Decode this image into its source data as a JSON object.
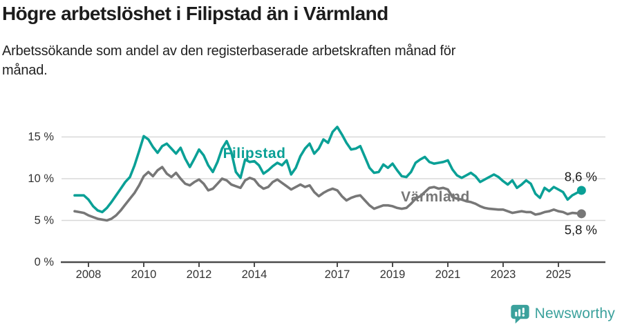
{
  "header": {
    "title": "Högre arbetslöshet i Filipstad än i Värmland",
    "subtitle_lines": [
      "Arbetssökande som andel av den registerbaserade arbetskraften månad för",
      "månad."
    ]
  },
  "chart_data": {
    "type": "line",
    "title": "Högre arbetslöshet i Filipstad än i Värmland",
    "subtitle": "Arbetssökande som andel av den registerbaserade arbetskraften månad för månad.",
    "unit": "%",
    "grid": true,
    "x_start": 2007.5,
    "x_step_years": 0.16667,
    "x_ticks": [
      2008,
      2010,
      2012,
      2014,
      2017,
      2019,
      2021,
      2023,
      2025
    ],
    "y_ticks": [
      0,
      5,
      10,
      15
    ],
    "y_tick_suffix": " %",
    "ylim": [
      0,
      16.5
    ],
    "xlabel": "",
    "ylabel": "",
    "legend_position": "inline-labels",
    "series": [
      {
        "name": "Filipstad",
        "color": "#0aa096",
        "end_label": "8,6 %",
        "last_value": 8.6,
        "label_anchor": {
          "year": 2014.0,
          "pct": 13.0
        },
        "values": [
          8.0,
          8.0,
          8.0,
          7.5,
          6.7,
          6.2,
          6.0,
          6.5,
          7.2,
          8.0,
          8.8,
          9.6,
          10.2,
          11.6,
          13.3,
          15.1,
          14.7,
          13.8,
          13.1,
          13.9,
          14.2,
          13.6,
          13.0,
          13.7,
          12.4,
          11.4,
          12.4,
          13.5,
          12.8,
          11.6,
          10.8,
          12.0,
          13.6,
          14.5,
          13.2,
          10.8,
          10.1,
          12.3,
          12.0,
          12.1,
          11.6,
          10.6,
          11.0,
          11.5,
          11.9,
          11.6,
          12.2,
          10.5,
          11.3,
          12.7,
          13.6,
          14.2,
          13.0,
          13.6,
          14.7,
          14.3,
          15.6,
          16.2,
          15.3,
          14.3,
          13.5,
          13.6,
          13.9,
          12.6,
          11.3,
          10.7,
          10.8,
          11.7,
          11.3,
          11.8,
          11.0,
          10.3,
          10.2,
          10.8,
          11.9,
          12.3,
          12.6,
          12.0,
          11.8,
          11.9,
          12.0,
          12.2,
          11.1,
          10.4,
          10.1,
          10.4,
          10.7,
          10.3,
          9.6,
          9.9,
          10.2,
          10.5,
          10.2,
          9.7,
          9.3,
          9.8,
          8.9,
          9.3,
          9.8,
          9.4,
          8.2,
          7.7,
          8.9,
          8.5,
          9.0,
          8.7,
          8.4,
          7.5,
          8.0,
          8.3,
          8.6
        ]
      },
      {
        "name": "Värmland",
        "color": "#777777",
        "end_label": "5,8 %",
        "last_value": 5.8,
        "label_anchor": {
          "year": 2020.55,
          "pct": 7.8
        },
        "values": [
          6.1,
          6.0,
          5.9,
          5.6,
          5.4,
          5.2,
          5.1,
          5.0,
          5.2,
          5.6,
          6.2,
          6.9,
          7.6,
          8.3,
          9.2,
          10.3,
          10.8,
          10.3,
          11.0,
          11.4,
          10.6,
          10.2,
          10.7,
          10.0,
          9.4,
          9.2,
          9.6,
          9.9,
          9.4,
          8.6,
          8.8,
          9.4,
          10.0,
          9.8,
          9.3,
          9.1,
          8.9,
          9.8,
          10.1,
          9.9,
          9.2,
          8.8,
          9.0,
          9.6,
          9.9,
          9.5,
          9.1,
          8.7,
          9.0,
          9.3,
          9.0,
          9.2,
          8.4,
          7.9,
          8.3,
          8.6,
          8.8,
          8.6,
          7.9,
          7.4,
          7.7,
          7.9,
          8.0,
          7.4,
          6.8,
          6.4,
          6.6,
          6.8,
          6.8,
          6.7,
          6.5,
          6.4,
          6.5,
          7.0,
          7.6,
          7.9,
          8.4,
          8.9,
          9.0,
          8.8,
          8.9,
          8.7,
          7.8,
          7.6,
          7.5,
          7.3,
          7.2,
          7.0,
          6.7,
          6.5,
          6.4,
          6.35,
          6.3,
          6.3,
          6.1,
          5.9,
          6.0,
          6.1,
          6.0,
          6.0,
          5.7,
          5.8,
          6.0,
          6.1,
          6.3,
          6.1,
          6.0,
          5.75,
          5.9,
          5.85,
          5.8
        ]
      }
    ],
    "colors": {
      "gridline": "#d8d8d8",
      "axis": "#4a4a4a",
      "tick_label": "#333333",
      "end_label": "#1a1a1a"
    }
  },
  "footer": {
    "brand": "Newsworthy",
    "brand_color": "#3ba19c",
    "icon": "bar-chart-speech-bubble"
  }
}
